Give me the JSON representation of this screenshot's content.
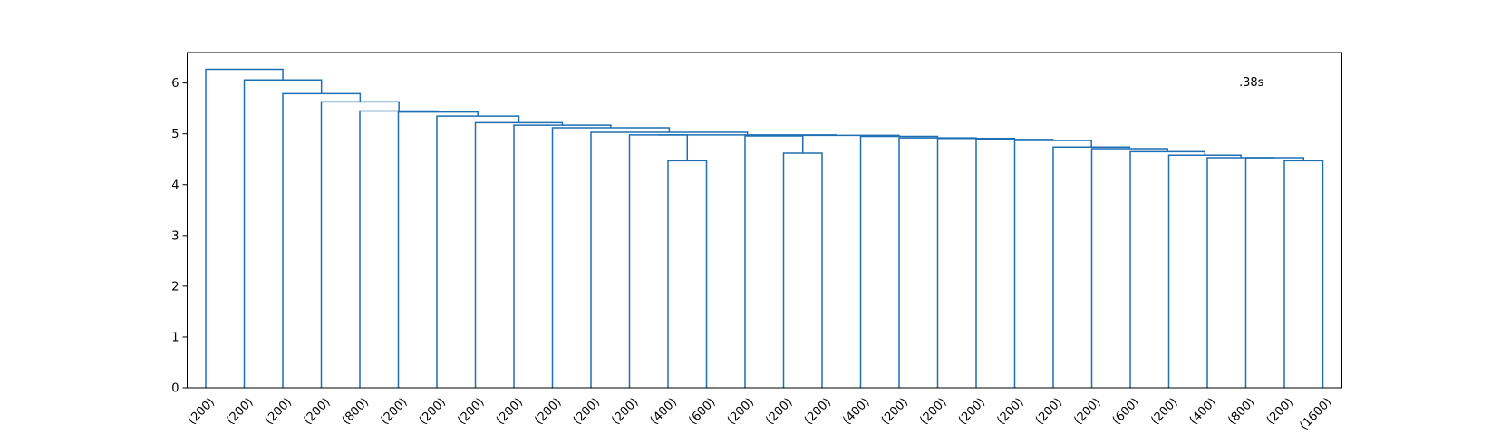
{
  "chart_data": {
    "type": "dendrogram",
    "title": "",
    "xlabel": "",
    "ylabel": "",
    "ylim": [
      0,
      6.6
    ],
    "yticks": [
      0,
      1,
      2,
      3,
      4,
      5,
      6
    ],
    "grid": false,
    "annotation": ".38s",
    "colors": {
      "link": "#1f6fb4",
      "axis": "#000000"
    },
    "leaves": [
      "(200)",
      "(200)",
      "(200)",
      "(200)",
      "(800)",
      "(200)",
      "(200)",
      "(200)",
      "(200)",
      "(200)",
      "(200)",
      "(200)",
      "(400)",
      "(600)",
      "(200)",
      "(200)",
      "(200)",
      "(400)",
      "(200)",
      "(200)",
      "(200)",
      "(200)",
      "(200)",
      "(200)",
      "(600)",
      "(200)",
      "(400)",
      "(800)",
      "(200)",
      "(1600)"
    ],
    "merges": [
      {
        "left": "L12",
        "right": "L13",
        "height": 4.47
      },
      {
        "left": "L28",
        "right": "L29",
        "height": 4.47
      },
      {
        "left": "L27",
        "right": "M1",
        "height": 4.53
      },
      {
        "left": "L26",
        "right": "M2",
        "height": 4.53
      },
      {
        "left": "L25",
        "right": "M3",
        "height": 4.58
      },
      {
        "left": "L15",
        "right": "L16",
        "height": 4.62
      },
      {
        "left": "L24",
        "right": "M4",
        "height": 4.65
      },
      {
        "left": "L23",
        "right": "M6",
        "height": 4.71
      },
      {
        "left": "L22",
        "right": "M7",
        "height": 4.74
      },
      {
        "left": "L21",
        "right": "M8",
        "height": 4.87
      },
      {
        "left": "L20",
        "right": "M9",
        "height": 4.89
      },
      {
        "left": "L19",
        "right": "M10",
        "height": 4.91
      },
      {
        "left": "L18",
        "right": "M11",
        "height": 4.92
      },
      {
        "left": "L17",
        "right": "M12",
        "height": 4.95
      },
      {
        "left": "L14",
        "right": "M5",
        "height": 4.96
      },
      {
        "left": "M14",
        "right": "M13",
        "height": 4.97
      },
      {
        "left": "L11",
        "right": "M0",
        "height": 4.98
      },
      {
        "left": "M16",
        "right": "M15",
        "height": 4.98
      },
      {
        "left": "L10",
        "right": "M17",
        "height": 5.03
      },
      {
        "left": "L9",
        "right": "M18",
        "height": 5.12
      },
      {
        "left": "L8",
        "right": "M19",
        "height": 5.17
      },
      {
        "left": "L7",
        "right": "M20",
        "height": 5.22
      },
      {
        "left": "L6",
        "right": "M21",
        "height": 5.35
      },
      {
        "left": "L5",
        "right": "M22",
        "height": 5.43
      },
      {
        "left": "L4",
        "right": "M23",
        "height": 5.45
      },
      {
        "left": "L3",
        "right": "M24",
        "height": 5.63
      },
      {
        "left": "L2",
        "right": "M25",
        "height": 5.79
      },
      {
        "left": "L1",
        "right": "M26",
        "height": 6.06
      },
      {
        "left": "L0",
        "right": "M27",
        "height": 6.27
      }
    ]
  }
}
